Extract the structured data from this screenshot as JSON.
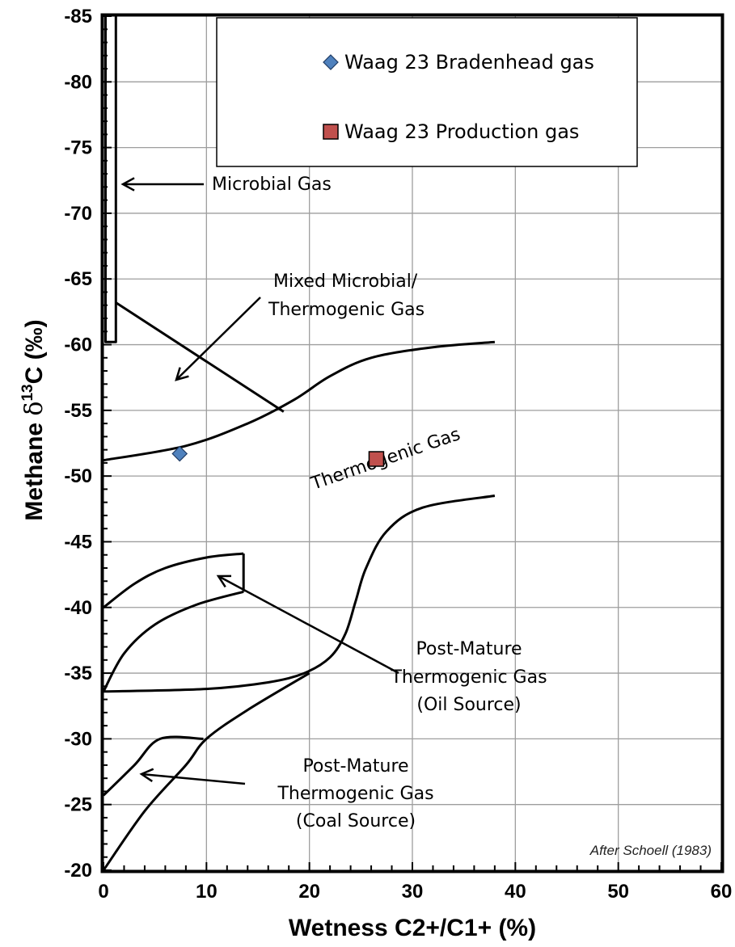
{
  "chart_data": {
    "type": "scatter",
    "xlabel": "Wetness C2+/C1+ (%)",
    "ylabel": "Methane δ13C (‰)",
    "ylabel_main": "Methane ",
    "ylabel_delta": "δ",
    "ylabel_sup": "13",
    "ylabel_unit": "C (‰)",
    "xlim": [
      0,
      60
    ],
    "ylim": [
      -20,
      -85
    ],
    "x_ticks": [
      "0",
      "10",
      "20",
      "30",
      "40",
      "50",
      "60"
    ],
    "y_ticks": [
      "-20",
      "-25",
      "-30",
      "-35",
      "-40",
      "-45",
      "-50",
      "-55",
      "-60",
      "-65",
      "-70",
      "-75",
      "-80",
      "-85"
    ],
    "grid": true,
    "legend_position": "top-right",
    "series": [
      {
        "name": "Waag 23 Bradenhead gas",
        "marker": "diamond",
        "color": "#4f81bd",
        "points": [
          [
            7.4,
            -51.7
          ]
        ]
      },
      {
        "name": "Waag 23 Production gas",
        "marker": "square",
        "color": "#c0504d",
        "points": [
          [
            26.5,
            -51.3
          ]
        ]
      }
    ],
    "boundaries": {
      "microbial_box": [
        [
          0.2,
          -85
        ],
        [
          0.2,
          -60.2
        ],
        [
          1.2,
          -60.2
        ],
        [
          1.2,
          -85
        ]
      ],
      "thermogenic_upper": [
        [
          0,
          -51.2
        ],
        [
          8,
          -52.3
        ],
        [
          14,
          -54
        ],
        [
          18.5,
          -55.8
        ],
        [
          22,
          -57.6
        ],
        [
          26,
          -59
        ],
        [
          32,
          -59.8
        ],
        [
          38,
          -60.2
        ]
      ],
      "mixed_line": [
        [
          1.2,
          -63.2
        ],
        [
          17.5,
          -54.9
        ]
      ],
      "thermogenic_lower": [
        [
          0,
          -33.6
        ],
        [
          10,
          -33.8
        ],
        [
          16,
          -34.3
        ],
        [
          19.5,
          -35
        ],
        [
          22,
          -36.2
        ],
        [
          23.5,
          -38
        ],
        [
          24.5,
          -40.5
        ],
        [
          25.5,
          -43
        ],
        [
          27.5,
          -45.8
        ],
        [
          31,
          -47.6
        ],
        [
          38,
          -48.5
        ]
      ],
      "oil_upper": [
        [
          0,
          -40
        ],
        [
          3,
          -41.8
        ],
        [
          6,
          -43
        ],
        [
          10,
          -43.8
        ],
        [
          13.6,
          -44.1
        ]
      ],
      "oil_right": [
        [
          13.6,
          -44.1
        ],
        [
          13.6,
          -41.2
        ]
      ],
      "oil_lower": [
        [
          0,
          -33.6
        ],
        [
          2,
          -36.5
        ],
        [
          5,
          -38.7
        ],
        [
          9,
          -40.2
        ],
        [
          13.6,
          -41.2
        ]
      ],
      "oil_to_mature": [
        [
          0,
          -33.6
        ],
        [
          10,
          -33.8
        ],
        [
          16,
          -34.3
        ],
        [
          19.5,
          -35
        ]
      ],
      "coal_upper": [
        [
          0,
          -25.7
        ],
        [
          3,
          -28
        ],
        [
          5.5,
          -30
        ],
        [
          9.7,
          -30
        ]
      ],
      "coal_lower": [
        [
          0,
          -20
        ],
        [
          4,
          -24.5
        ],
        [
          8,
          -28
        ],
        [
          10,
          -30
        ],
        [
          14,
          -32.2
        ],
        [
          20,
          -35
        ]
      ]
    },
    "annotations": [
      {
        "text": "Microbial Gas"
      },
      {
        "text": "Mixed Microbial/"
      },
      {
        "text": "Thermogenic Gas"
      },
      {
        "text": "Thermogenic Gas"
      },
      {
        "text": "Post-Mature"
      },
      {
        "text": "Thermogenic Gas"
      },
      {
        "text": "(Oil Source)"
      },
      {
        "text": "Post-Mature"
      },
      {
        "text": "Thermogenic Gas"
      },
      {
        "text": "(Coal Source)"
      }
    ],
    "credit": "After Schoell (1983)"
  }
}
